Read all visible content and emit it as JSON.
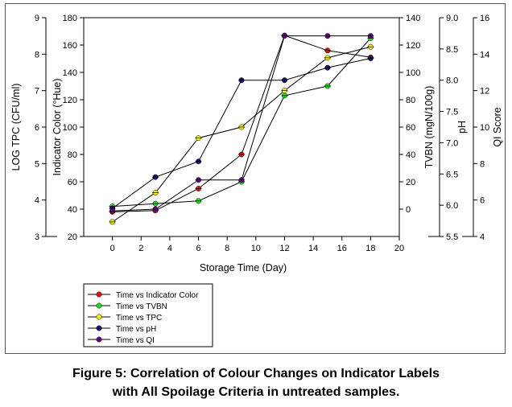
{
  "chart_data": {
    "type": "line",
    "x": [
      0,
      3,
      6,
      9,
      12,
      15,
      18
    ],
    "xlabel": "Storage Time (Day)",
    "xlim": [
      -2,
      20
    ],
    "xticks": [
      0,
      2,
      4,
      6,
      8,
      10,
      12,
      14,
      16,
      18,
      20
    ],
    "axes": {
      "tpc": {
        "label": "LOG TPC (CFU/ml)",
        "ylim": [
          3,
          9
        ],
        "ticks": [
          3,
          4,
          5,
          6,
          7,
          8,
          9
        ]
      },
      "color": {
        "label": "Indicator Color (°Hue)",
        "ylim": [
          20,
          180
        ],
        "ticks": [
          20,
          40,
          60,
          80,
          100,
          120,
          140,
          160,
          180
        ]
      },
      "tvbn": {
        "label": "TVBN (mgN/100g)",
        "ylim": [
          -20,
          140
        ],
        "ticks": [
          0,
          20,
          40,
          60,
          80,
          100,
          120,
          140
        ]
      },
      "ph": {
        "label": "pH",
        "ylim": [
          5.5,
          9.0
        ],
        "ticks": [
          5.5,
          6.0,
          6.5,
          7.0,
          7.5,
          8.0,
          8.5,
          9.0
        ]
      },
      "qi": {
        "label": "QI Score",
        "ylim": [
          4,
          16
        ],
        "ticks": [
          4,
          6,
          8,
          10,
          12,
          14,
          16
        ]
      }
    },
    "series": [
      {
        "name": "Time vs Indicator Color",
        "axis": "color",
        "color": "#e01010",
        "values": [
          38,
          39,
          55,
          80,
          167,
          156,
          151
        ]
      },
      {
        "name": "Time vs TVBN",
        "axis": "tvbn",
        "color": "#22dd22",
        "values": [
          2,
          4,
          6,
          20,
          83,
          90,
          125
        ]
      },
      {
        "name": "Time vs TPC",
        "axis": "tpc",
        "color": "#f2f200",
        "values": [
          3.4,
          4.2,
          5.7,
          6.0,
          7.0,
          7.9,
          8.2
        ]
      },
      {
        "name": "Time vs pH",
        "axis": "ph",
        "color": "#101070",
        "values": [
          5.95,
          6.45,
          6.7,
          8.0,
          8.0,
          8.2,
          8.35
        ]
      },
      {
        "name": "Time vs QI",
        "axis": "qi",
        "color": "#600080",
        "values": [
          5.4,
          5.5,
          7.1,
          7.1,
          15.0,
          15.0,
          15.0
        ]
      }
    ]
  },
  "caption": {
    "line1": "Figure 5: Correlation of Colour Changes on Indicator Labels",
    "line2": "with All Spoilage Criteria in untreated samples."
  }
}
